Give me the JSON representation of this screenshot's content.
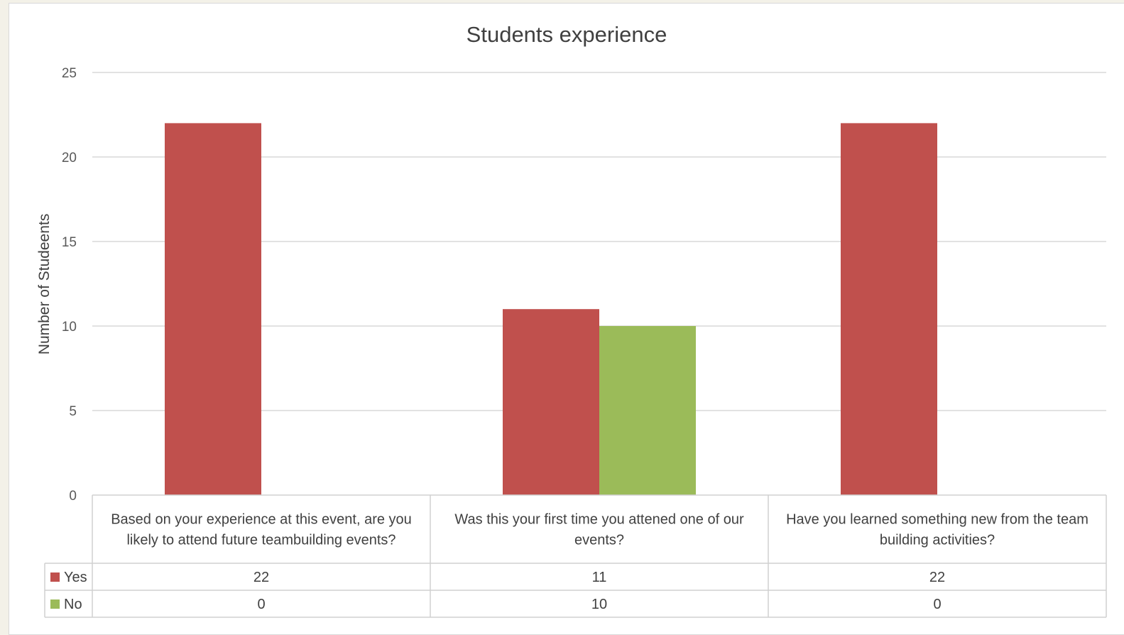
{
  "chart_data": {
    "type": "bar",
    "title": "Students experience",
    "ylabel": "Number of Studeents",
    "xlabel": "",
    "ylim": [
      0,
      25
    ],
    "yticks": [
      0,
      5,
      10,
      15,
      20,
      25
    ],
    "grid": true,
    "legend": "data-table",
    "categories": [
      "Based on your experience at this event, are you likely to attend future teambuilding events?",
      "Was this your first time you attened one of our events?",
      "Have you learned something new from the team building activities?"
    ],
    "series": [
      {
        "name": "Yes",
        "color": "#c0504d",
        "values": [
          22,
          11,
          22
        ]
      },
      {
        "name": "No",
        "color": "#9bbb59",
        "values": [
          0,
          10,
          0
        ]
      }
    ]
  }
}
